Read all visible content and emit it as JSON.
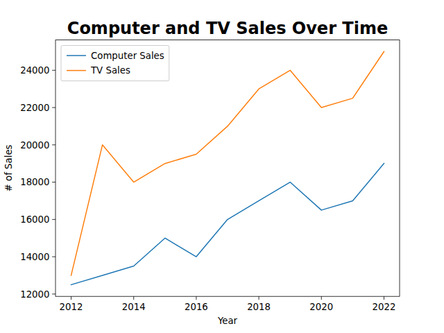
{
  "chart_data": {
    "type": "line",
    "title": "Computer and TV Sales Over Time",
    "x_label": "Year",
    "y_label": "# of Sales",
    "x": [
      2012,
      2013,
      2014,
      2015,
      2016,
      2017,
      2018,
      2019,
      2020,
      2021,
      2022
    ],
    "series": [
      {
        "name": "Computer Sales",
        "color": "#1f77b4",
        "values": [
          12500,
          13000,
          13500,
          15000,
          14000,
          16000,
          17000,
          18000,
          16500,
          17000,
          19000
        ]
      },
      {
        "name": "TV Sales",
        "color": "#ff7f0e",
        "values": [
          13000,
          20000,
          18000,
          19000,
          19500,
          21000,
          23000,
          24000,
          22000,
          22500,
          25000
        ]
      }
    ],
    "xlim": [
      2011.5,
      2022.5
    ],
    "xticks": [
      2012,
      2014,
      2016,
      2018,
      2020,
      2022
    ],
    "ylim": [
      11875,
      25625
    ],
    "yticks": [
      12000,
      14000,
      16000,
      18000,
      20000,
      22000,
      24000
    ],
    "grid": false,
    "legend": "upper left"
  }
}
